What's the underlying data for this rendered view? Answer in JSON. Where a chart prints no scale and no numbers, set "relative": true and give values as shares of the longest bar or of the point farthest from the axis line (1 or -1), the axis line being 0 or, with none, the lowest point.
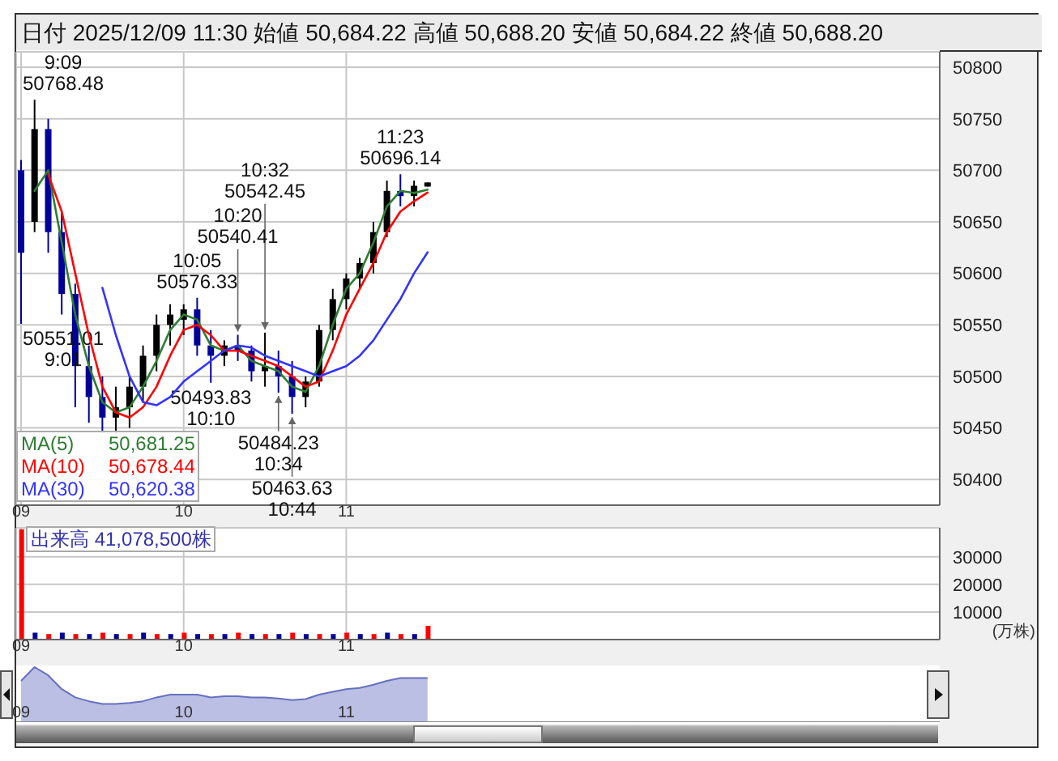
{
  "chart_data": [
    {
      "type": "candlestick",
      "title": "日付 2025/12/09 11:30 始値 50,684.22 高値 50,688.20 安値 50,684.22 終値 50,688.20",
      "x": [
        9,
        9.083,
        9.167,
        9.25,
        9.333,
        9.417,
        9.5,
        9.583,
        9.667,
        9.75,
        9.833,
        9.917,
        10,
        10.083,
        10.167,
        10.25,
        10.333,
        10.417,
        10.5,
        10.583,
        10.667,
        10.75,
        10.833,
        10.917,
        11,
        11.083,
        11.167,
        11.25,
        11.333,
        11.417,
        11.5
      ],
      "ohlc": [
        [
          50700,
          50710,
          50551.01,
          50620
        ],
        [
          50650,
          50768.48,
          50640,
          50740
        ],
        [
          50740,
          50750,
          50620,
          50640
        ],
        [
          50640,
          50660,
          50560,
          50580
        ],
        [
          50580,
          50590,
          50470,
          50510
        ],
        [
          50510,
          50530,
          50455,
          50480
        ],
        [
          50480,
          50500,
          50445,
          50460
        ],
        [
          50460,
          50490,
          50445,
          50470
        ],
        [
          50470,
          50500,
          50450,
          50490
        ],
        [
          50490,
          50530,
          50475,
          50520
        ],
        [
          50520,
          50560,
          50505,
          50550
        ],
        [
          50550,
          50570,
          50530,
          50560
        ],
        [
          50555,
          50570,
          50540,
          50565
        ],
        [
          50565,
          50576.33,
          50520,
          50530
        ],
        [
          50530,
          50545,
          50493.83,
          50520
        ],
        [
          50520,
          50535,
          50510,
          50530
        ],
        [
          50530,
          50540.41,
          50515,
          50525
        ],
        [
          50525,
          50530,
          50495,
          50505
        ],
        [
          50505,
          50542.45,
          50490,
          50510
        ],
        [
          50510,
          50525,
          50484.23,
          50500
        ],
        [
          50500,
          50515,
          50463.63,
          50480
        ],
        [
          50480,
          50500,
          50470,
          50495
        ],
        [
          50495,
          50550,
          50490,
          50545
        ],
        [
          50545,
          50585,
          50535,
          50575
        ],
        [
          50575,
          50600,
          50565,
          50595
        ],
        [
          50595,
          50615,
          50585,
          50610
        ],
        [
          50610,
          50650,
          50600,
          50640
        ],
        [
          50640,
          50690,
          50635,
          50680
        ],
        [
          50680,
          50696.14,
          50665,
          50675
        ],
        [
          50675,
          50690,
          50665,
          50685
        ],
        [
          50684.22,
          50688.2,
          50684.22,
          50688.2
        ]
      ],
      "colors": [
        "#000099",
        "#000000",
        "#000099",
        "#000099",
        "#000099",
        "#000099",
        "#000099",
        "#000000",
        "#000000",
        "#000000",
        "#000000",
        "#000000",
        "#000000",
        "#000099",
        "#000099",
        "#000000",
        "#000099",
        "#000099",
        "#000000",
        "#000099",
        "#000099",
        "#000000",
        "#000000",
        "#000000",
        "#000000",
        "#000000",
        "#000000",
        "#000000",
        "#000099",
        "#000000",
        "#000000"
      ],
      "series": [
        {
          "name": "MA(5)",
          "type": "line",
          "color": "#2e7d32",
          "values": [
            null,
            50680,
            50700,
            50630,
            50560,
            50510,
            50475,
            50465,
            50470,
            50490,
            50515,
            50545,
            50560,
            50555,
            50530,
            50525,
            50530,
            50515,
            50510,
            50505,
            50490,
            50485,
            50510,
            50550,
            50585,
            50600,
            50630,
            50665,
            50680,
            50678,
            50681.25
          ]
        },
        {
          "name": "MA(10)",
          "type": "line",
          "color": "#ff0000",
          "values": [
            null,
            null,
            50696,
            50660,
            50600,
            50540,
            50490,
            50465,
            50460,
            50470,
            50490,
            50520,
            50545,
            50550,
            50540,
            50525,
            50525,
            50520,
            50515,
            50510,
            50500,
            50490,
            50495,
            50525,
            50560,
            50585,
            50610,
            50640,
            50660,
            50670,
            50678.44
          ]
        },
        {
          "name": "MA(30)",
          "type": "line",
          "color": "#3333ff",
          "values": [
            null,
            null,
            null,
            null,
            null,
            null,
            50586,
            50540,
            50500,
            50475,
            50472,
            50480,
            50495,
            50505,
            50515,
            50525,
            50530,
            50528,
            50520,
            50515,
            50510,
            50505,
            50500,
            50505,
            50510,
            50520,
            50535,
            50555,
            50575,
            50600,
            50620.38
          ]
        }
      ],
      "xlim": [
        8.97,
        14.65
      ],
      "xticks": [
        {
          "value": 9,
          "label": "09"
        },
        {
          "value": 10,
          "label": "10"
        },
        {
          "value": 11,
          "label": "11"
        }
      ],
      "ylim": [
        50375,
        50815
      ],
      "yticks": [
        50400,
        50450,
        50500,
        50550,
        50600,
        50650,
        50700,
        50750,
        50800
      ],
      "grid": true,
      "legend": "bottom left",
      "annotations": [
        {
          "text": "9:09\n50768.48",
          "x": 9.083,
          "y": 50768.48
        },
        {
          "text": "50551.01\n9:01",
          "x": 9,
          "y": 50551.01
        },
        {
          "text": "10:05\n50576.33",
          "x": 10.083,
          "y": 50576.33
        },
        {
          "text": "50493.83\n10:10",
          "x": 10.167,
          "y": 50493.83
        },
        {
          "text": "10:20\n50540.41",
          "x": 10.333,
          "y": 50540.41
        },
        {
          "text": "10:32\n50542.45",
          "x": 10.5,
          "y": 50542.45
        },
        {
          "text": "50484.23\n10:34",
          "x": 10.583,
          "y": 50484.23
        },
        {
          "text": "50463.63\n10:44",
          "x": 10.667,
          "y": 50463.63
        },
        {
          "text": "11:23\n50696.14",
          "x": 11.333,
          "y": 50696.14
        },
        "50,681.25",
        "50,678.44",
        "50,620.38"
      ]
    },
    {
      "type": "bar",
      "title": "出来高 41,078,500株",
      "ylabel": "(万株)",
      "x": [
        9,
        9.083,
        9.167,
        9.25,
        9.333,
        9.417,
        9.5,
        9.583,
        9.667,
        9.75,
        9.833,
        9.917,
        10,
        10.083,
        10.167,
        10.25,
        10.333,
        10.417,
        10.5,
        10.583,
        10.667,
        10.75,
        10.833,
        10.917,
        11,
        11.083,
        11.167,
        11.25,
        11.333,
        11.417,
        11.5
      ],
      "values": [
        40000,
        2500,
        2000,
        2500,
        2000,
        2000,
        2500,
        2000,
        2000,
        2500,
        2000,
        2000,
        2500,
        2000,
        2000,
        2000,
        2500,
        2000,
        2000,
        2000,
        2500,
        2000,
        2000,
        2000,
        2500,
        2000,
        2000,
        2500,
        2000,
        2000,
        5000
      ],
      "colors": [
        "#ff0000",
        "#000099",
        "#ff0000",
        "#000099",
        "#ff0000",
        "#000099",
        "#ff0000",
        "#000099",
        "#ff0000",
        "#000099",
        "#ff0000",
        "#000099",
        "#ff0000",
        "#000099",
        "#ff0000",
        "#000099",
        "#ff0000",
        "#000099",
        "#ff0000",
        "#000099",
        "#ff0000",
        "#000099",
        "#ff0000",
        "#000099",
        "#ff0000",
        "#000099",
        "#ff0000",
        "#000099",
        "#ff0000",
        "#000099",
        "#ff0000"
      ],
      "xlim": [
        8.97,
        14.65
      ],
      "xticks": [
        {
          "value": 9,
          "label": "09"
        },
        {
          "value": 10,
          "label": "10"
        },
        {
          "value": 11,
          "label": "11"
        }
      ],
      "ylim": [
        0,
        40500
      ],
      "yticks": [
        10000,
        20000,
        30000
      ],
      "grid": true
    },
    {
      "type": "area",
      "relative": true,
      "color": "#6670c0",
      "x": [
        9,
        9.083,
        9.167,
        9.25,
        9.333,
        9.417,
        9.5,
        9.583,
        9.667,
        9.75,
        9.833,
        9.917,
        10,
        10.083,
        10.167,
        10.25,
        10.333,
        10.417,
        10.5,
        10.583,
        10.667,
        10.75,
        10.833,
        10.917,
        11,
        11.083,
        11.167,
        11.25,
        11.333,
        11.417,
        11.5
      ],
      "values": [
        0.75,
        1,
        0.85,
        0.6,
        0.45,
        0.38,
        0.33,
        0.33,
        0.35,
        0.38,
        0.45,
        0.5,
        0.5,
        0.5,
        0.45,
        0.47,
        0.47,
        0.45,
        0.45,
        0.43,
        0.4,
        0.42,
        0.5,
        0.55,
        0.6,
        0.62,
        0.68,
        0.75,
        0.8,
        0.8,
        0.8
      ],
      "xlim": [
        8.97,
        14.65
      ],
      "xticks": [
        {
          "value": 9,
          "label": "09"
        },
        {
          "value": 10,
          "label": "10"
        },
        {
          "value": 11,
          "label": "11"
        }
      ],
      "tick_labels": "x"
    }
  ]
}
